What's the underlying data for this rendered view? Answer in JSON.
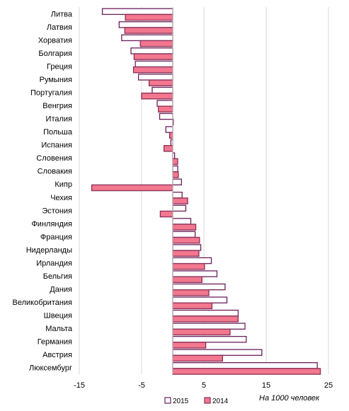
{
  "chart_data": {
    "type": "bar",
    "orientation": "horizontal",
    "categories": [
      "Литва",
      "Латвия",
      "Хорватия",
      "Болгария",
      "Греция",
      "Румыния",
      "Португалия",
      "Венгрия",
      "Италия",
      "Польша",
      "Испания",
      "Словения",
      "Словакия",
      "Кипр",
      "Чехия",
      "Эстония",
      "Финляндия",
      "Франция",
      "Нидерланды",
      "Ирландия",
      "Бельгия",
      "Дания",
      "Великобритания",
      "Швеция",
      "Мальта",
      "Германия",
      "Австрия",
      "Люксембург"
    ],
    "series": [
      {
        "name": "2015",
        "color": "#ffffff",
        "stroke": "#6b1f5c",
        "values": [
          -11.3,
          -8.6,
          -8.2,
          -6.7,
          -6.0,
          -5.5,
          -3.3,
          -2.5,
          -2.1,
          -1.1,
          -0.3,
          0.3,
          0.8,
          1.4,
          1.5,
          2.1,
          2.9,
          3.6,
          4.5,
          6.2,
          7.1,
          8.4,
          8.7,
          10.5,
          11.6,
          11.8,
          14.3,
          23.2
        ]
      },
      {
        "name": "2014",
        "color": "#f2778f",
        "stroke": "#8b2f55",
        "values": [
          -7.6,
          -7.7,
          -5.2,
          -6.2,
          -6.3,
          -3.8,
          -5.0,
          -2.3,
          0.1,
          -0.5,
          -1.4,
          0.8,
          0.9,
          -13.0,
          2.4,
          -2.0,
          3.7,
          4.3,
          4.2,
          5.1,
          4.7,
          5.8,
          6.3,
          10.5,
          9.2,
          5.3,
          8.0,
          23.7
        ]
      }
    ],
    "xlim": [
      -15,
      25
    ],
    "xticks": [
      -15,
      -5,
      5,
      15,
      25
    ],
    "xtick_labels": [
      "-15",
      "-5",
      "5",
      "15",
      "25"
    ],
    "unit_label": "На 1000 человек",
    "grid": true,
    "legend_position": "bottom"
  }
}
